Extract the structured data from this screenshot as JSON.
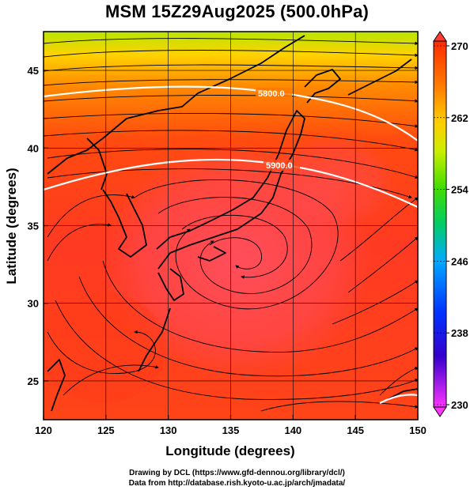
{
  "title": "MSM 15Z29Aug2025 (500.0hPa)",
  "axes": {
    "xlabel": "Longitude (degrees)",
    "ylabel": "Latitude  (degrees)",
    "xticks": [
      "120",
      "125",
      "130",
      "135",
      "140",
      "145",
      "150"
    ],
    "yticks": [
      "25",
      "30",
      "35",
      "40",
      "45"
    ],
    "xlim": [
      120,
      150
    ],
    "ylim": [
      22.5,
      47.5
    ]
  },
  "colorbar": {
    "labels": [
      "270",
      "262",
      "254",
      "246",
      "238",
      "230"
    ],
    "range": [
      230,
      270
    ],
    "colors": [
      "#ff3366",
      "#ff2a00",
      "#ff8800",
      "#ffcc00",
      "#66dd00",
      "#00cc66",
      "#00aaff",
      "#0033ff",
      "#3300cc",
      "#ff33ff"
    ]
  },
  "contours": [
    {
      "label": "5800.0",
      "value": 5800
    },
    {
      "label": "5900.0",
      "value": 5900
    }
  ],
  "credits": {
    "line1": "Drawing by DCL (https://www.gfd-dennou.org/library/dcl/)",
    "line2": "Data from http://database.rish.kyoto-u.ac.jp/arch/jmadata/"
  }
}
